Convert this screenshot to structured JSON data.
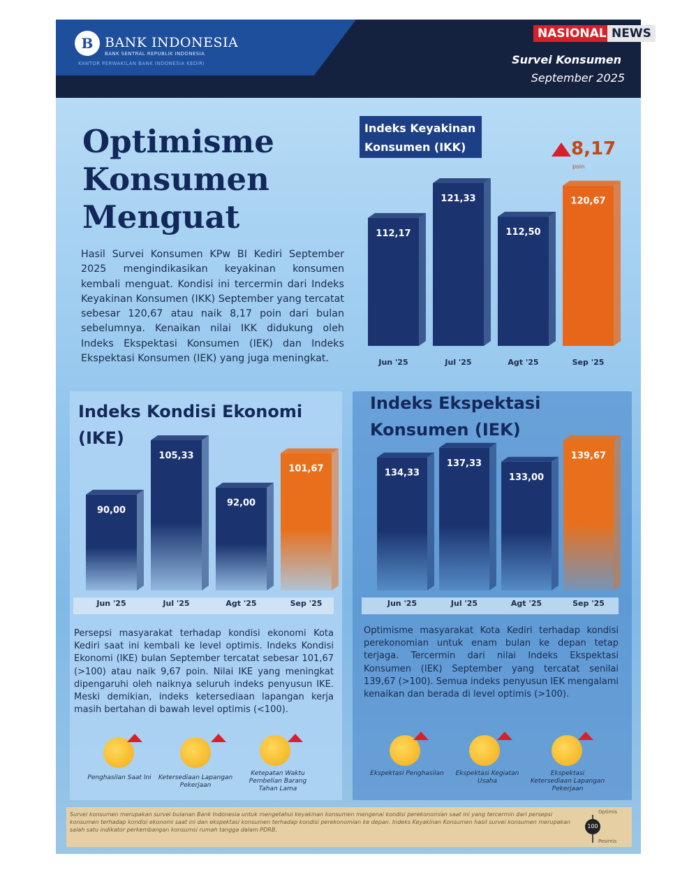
{
  "header": {
    "org": "BANK INDONESIA",
    "org_sub": "BANK SENTRAL REPUBLIK INDONESIA",
    "office": "KANTOR PERWAKILAN BANK INDONESIA KEDIRI",
    "badge_1": "NASIONAL",
    "badge_2": "NEWS",
    "survey": "Survei Konsumen",
    "period": "September 2025"
  },
  "headline": "Optimisme Konsumen Menguat",
  "intro": "Hasil Survei Konsumen KPw BI Kediri September 2025 mengindikasikan keyakinan konsumen kembali menguat. Kondisi ini tercermin dari Indeks Keyakinan Konsumen (IKK) September yang tercatat sebesar 120,67 atau naik 8,17 poin dari bulan sebelumnya. Kenaikan nilai IKK didukung oleh Indeks Ekspektasi Konsumen (IEK) dan Indeks Ekspektasi Konsumen (IEK) yang juga meningkat.",
  "chart_data": [
    {
      "type": "bar",
      "title": "Indeks Keyakinan Konsumen (IKK)",
      "annotation": "8,17",
      "annotation_unit": "poin",
      "categories": [
        "Jun '25",
        "Jul '25",
        "Agt '25",
        "Sep '25"
      ],
      "values": [
        112.17,
        121.33,
        112.5,
        120.67
      ],
      "value_labels": [
        "112,17",
        "121,33",
        "112,50",
        "120,67"
      ],
      "colors": [
        "#1b3470",
        "#1b3470",
        "#1b3470",
        "#e8661a"
      ]
    },
    {
      "type": "bar",
      "title": "Indeks Kondisi Ekonomi (IKE)",
      "categories": [
        "Jun '25",
        "Jul '25",
        "Agt '25",
        "Sep '25"
      ],
      "values": [
        90,
        105.33,
        92,
        101.67
      ],
      "value_labels": [
        "90,00",
        "105,33",
        "92,00",
        "101,67"
      ],
      "colors": [
        "#1b3470",
        "#1b3470",
        "#1b3470",
        "#e8701c"
      ]
    },
    {
      "type": "bar",
      "title": "Indeks Ekspektasi Konsumen (IEK)",
      "categories": [
        "Jun '25",
        "Jul '25",
        "Agt '25",
        "Sep '25"
      ],
      "values": [
        134.33,
        137.33,
        133,
        139.67
      ],
      "value_labels": [
        "134,33",
        "137,33",
        "133,00",
        "139,67"
      ],
      "colors": [
        "#1b3470",
        "#1b3470",
        "#1b3470",
        "#e8701c"
      ]
    }
  ],
  "ike_text": "Persepsi masyarakat terhadap kondisi ekonomi Kota Kediri saat ini kembali ke level optimis. Indeks Kondisi Ekonomi (IKE) bulan September tercatat sebesar 101,67 (>100) atau naik 9,67 poin. Nilai IKE yang meningkat dipengaruhi oleh naiknya seluruh indeks penyusun IKE. Meski demikian, indeks ketersediaan lapangan kerja masih bertahan di bawah level optimis (<100).",
  "iek_text": "Optimisme masyarakat Kota Kediri terhadap kondisi perekonomian untuk enam bulan ke depan tetap terjaga. Tercermin dari nilai Indeks Ekspektasi Konsumen (IEK) September yang tercatat senilai 139,67 (>100). Semua indeks penyusun IEK mengalami kenaikan dan berada di level optimis (>100).",
  "ike_components": [
    "Penghasilan Saat Ini",
    "Ketersediaan Lapangan Pekerjaan",
    "Ketepatan Waktu Pembelian Barang Tahan Lama"
  ],
  "iek_components": [
    "Ekspektasi Penghasilan",
    "Ekspektasi Kegiatan Usaha",
    "Ekspektasi Ketersediaan Lapangan Pekerjaan"
  ],
  "footer": {
    "note": "Survei konsumen merupakan survei bulanan Bank Indonesia untuk mengetahui keyakinan konsumen mengenai kondisi perekonomian saat ini yang tercermin dari persepsi konsumen terhadap kondisi ekonomi saat ini dan ekspektasi konsumen terhadap kondisi perekonomian ke depan. Indeks Keyakinan Konsumen hasil survei konsumen merupakan salah satu indikator perkembangan konsumsi rumah tangga dalam PDRB.",
    "scale_top": "Optimis",
    "scale_mid": "100",
    "scale_bottom": "Pesimis"
  }
}
